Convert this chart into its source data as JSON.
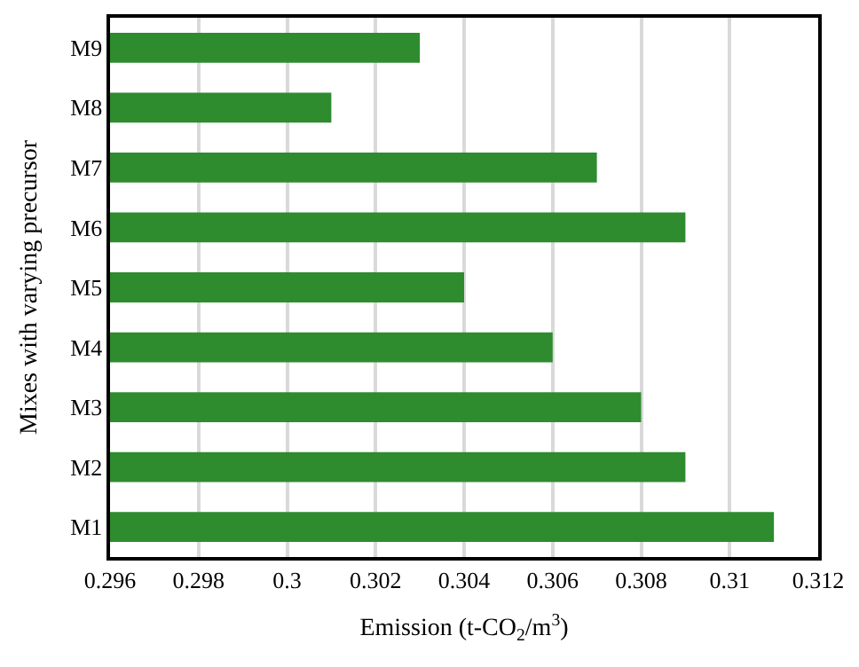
{
  "chart_data": {
    "type": "bar",
    "orientation": "horizontal",
    "xlabel": "Emission (t-CO$_{2}$/m$^{3}$)",
    "ylabel": "Mixes with varying precursor",
    "categories": [
      "M9",
      "M8",
      "M7",
      "M6",
      "M5",
      "M4",
      "M3",
      "M2",
      "M1"
    ],
    "values": [
      0.303,
      0.301,
      0.307,
      0.309,
      0.304,
      0.306,
      0.308,
      0.309,
      0.311
    ],
    "color": "#2e8b2e",
    "xlim": [
      0.296,
      0.312
    ],
    "xticks": [
      0.296,
      0.298,
      {
        "value": 0.3,
        "label": "0.3"
      },
      0.302,
      0.304,
      0.306,
      0.308,
      {
        "value": 0.31,
        "label": "0.31"
      },
      0.312
    ],
    "grid": "x",
    "legend": false
  }
}
